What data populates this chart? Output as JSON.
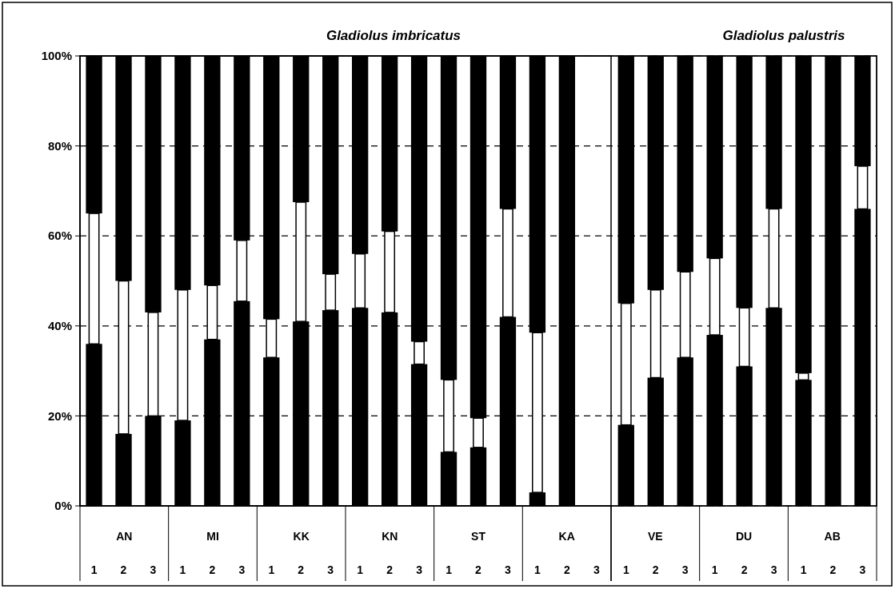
{
  "chart_data": {
    "type": "bar",
    "stacked": true,
    "grid": "y",
    "annotations": [
      "Gladiolus imbricatus",
      "Gladiolus palustris",
      "AN",
      "MI",
      "KK",
      "KN",
      "ST",
      "KA",
      "VE",
      "DU",
      "AB"
    ],
    "categories": [
      "1",
      "2",
      "3",
      "1",
      "2",
      "3",
      "1",
      "2",
      "3",
      "1",
      "2",
      "3",
      "1",
      "2",
      "3",
      "1",
      "2",
      "3",
      "1",
      "2",
      "3",
      "1",
      "2",
      "3",
      "1",
      "2",
      "3"
    ],
    "ylim": [
      0,
      100
    ],
    "yticks": [
      {
        "value": 0,
        "label": "0%"
      },
      {
        "value": 20,
        "label": "20%"
      },
      {
        "value": 40,
        "label": "40%"
      },
      {
        "value": 60,
        "label": "60%"
      },
      {
        "value": 80,
        "label": "80%"
      },
      {
        "value": 100,
        "label": "100%"
      }
    ],
    "series": [
      {
        "color": "#000000",
        "values": [
          36,
          16,
          20,
          19,
          37,
          45.5,
          33,
          41,
          43.5,
          44,
          43,
          31.5,
          12,
          13,
          42,
          3,
          100,
          null,
          18,
          28.5,
          33,
          38,
          31,
          44,
          28,
          100,
          66
        ]
      },
      {
        "color": "#ffffff",
        "values": [
          29,
          34,
          23,
          29,
          12,
          13.5,
          8.5,
          26.5,
          8,
          12,
          18,
          5,
          16,
          6.5,
          24,
          35.5,
          0,
          null,
          27,
          19.5,
          19,
          17,
          13,
          22,
          1.5,
          0,
          9.5
        ]
      },
      {
        "color": "#000000",
        "values": [
          35,
          50,
          57,
          52,
          51,
          41,
          58.5,
          32.5,
          48.5,
          44,
          39,
          63.5,
          72,
          80.5,
          34,
          61.5,
          0,
          null,
          55,
          52,
          48,
          45,
          56,
          34,
          70.5,
          0,
          24.5
        ]
      }
    ]
  }
}
